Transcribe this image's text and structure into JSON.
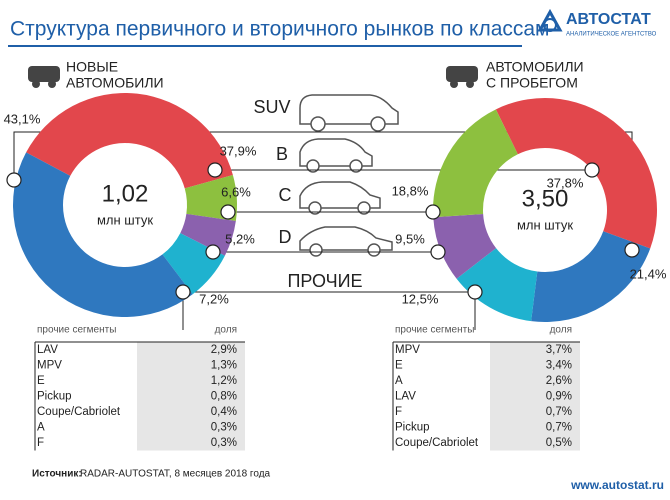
{
  "header": {
    "title": "Структура первичного и вторичного рынков по классам",
    "logo": "АВТОСТАТ",
    "logo_subtitle": "АНАЛИТИЧЕСКОЕ АГЕНТСТВО"
  },
  "chart_data": [
    {
      "type": "pie",
      "donut": true,
      "title": [
        "НОВЫЕ",
        "АВТОМОБИЛИ"
      ],
      "center_value": "1,02",
      "center_unit": "млн штук",
      "categories": [
        "SUV",
        "B",
        "C",
        "D",
        "ПРОЧИЕ"
      ],
      "values": [
        43.1,
        37.9,
        6.6,
        5.2,
        7.2
      ],
      "value_labels": [
        "43,1%",
        "37,9%",
        "6,6%",
        "5,2%",
        "7,2%"
      ],
      "colors": [
        "#2f78bf",
        "#e2474c",
        "#8dc03f",
        "#8b61ae",
        "#1fb2cf"
      ]
    },
    {
      "type": "pie",
      "donut": true,
      "title": [
        "АВТОМОБИЛИ",
        "С ПРОБЕГОМ"
      ],
      "center_value": "3,50",
      "center_unit": "млн штук",
      "categories": [
        "SUV",
        "B",
        "C",
        "D",
        "ПРОЧИЕ"
      ],
      "values": [
        21.4,
        37.8,
        18.8,
        9.5,
        12.5
      ],
      "value_labels": [
        "21,4%",
        "37,8%",
        "18,8%",
        "9,5%",
        "12,5%"
      ],
      "colors": [
        "#2f78bf",
        "#e2474c",
        "#8dc03f",
        "#8b61ae",
        "#1fb2cf"
      ]
    }
  ],
  "tables": [
    {
      "header": [
        "прочие сегменты",
        "доля"
      ],
      "rows": [
        [
          "LAV",
          "2,9%"
        ],
        [
          "MPV",
          "1,3%"
        ],
        [
          "E",
          "1,2%"
        ],
        [
          "Pickup",
          "0,8%"
        ],
        [
          "Coupe/Cabriolet",
          "0,4%"
        ],
        [
          "A",
          "0,3%"
        ],
        [
          "F",
          "0,3%"
        ]
      ]
    },
    {
      "header": [
        "прочие сегменты",
        "доля"
      ],
      "rows": [
        [
          "MPV",
          "3,7%"
        ],
        [
          "E",
          "3,4%"
        ],
        [
          "A",
          "2,6%"
        ],
        [
          "LAV",
          "0,9%"
        ],
        [
          "F",
          "0,7%"
        ],
        [
          "Pickup",
          "0,7%"
        ],
        [
          "Coupe/Cabriolet",
          "0,5%"
        ]
      ]
    }
  ],
  "footer": {
    "source_label": "Источник:",
    "source": "RADAR-AUTOSTAT, 8 месяцев 2018 года",
    "url": "www.autostat.ru"
  }
}
